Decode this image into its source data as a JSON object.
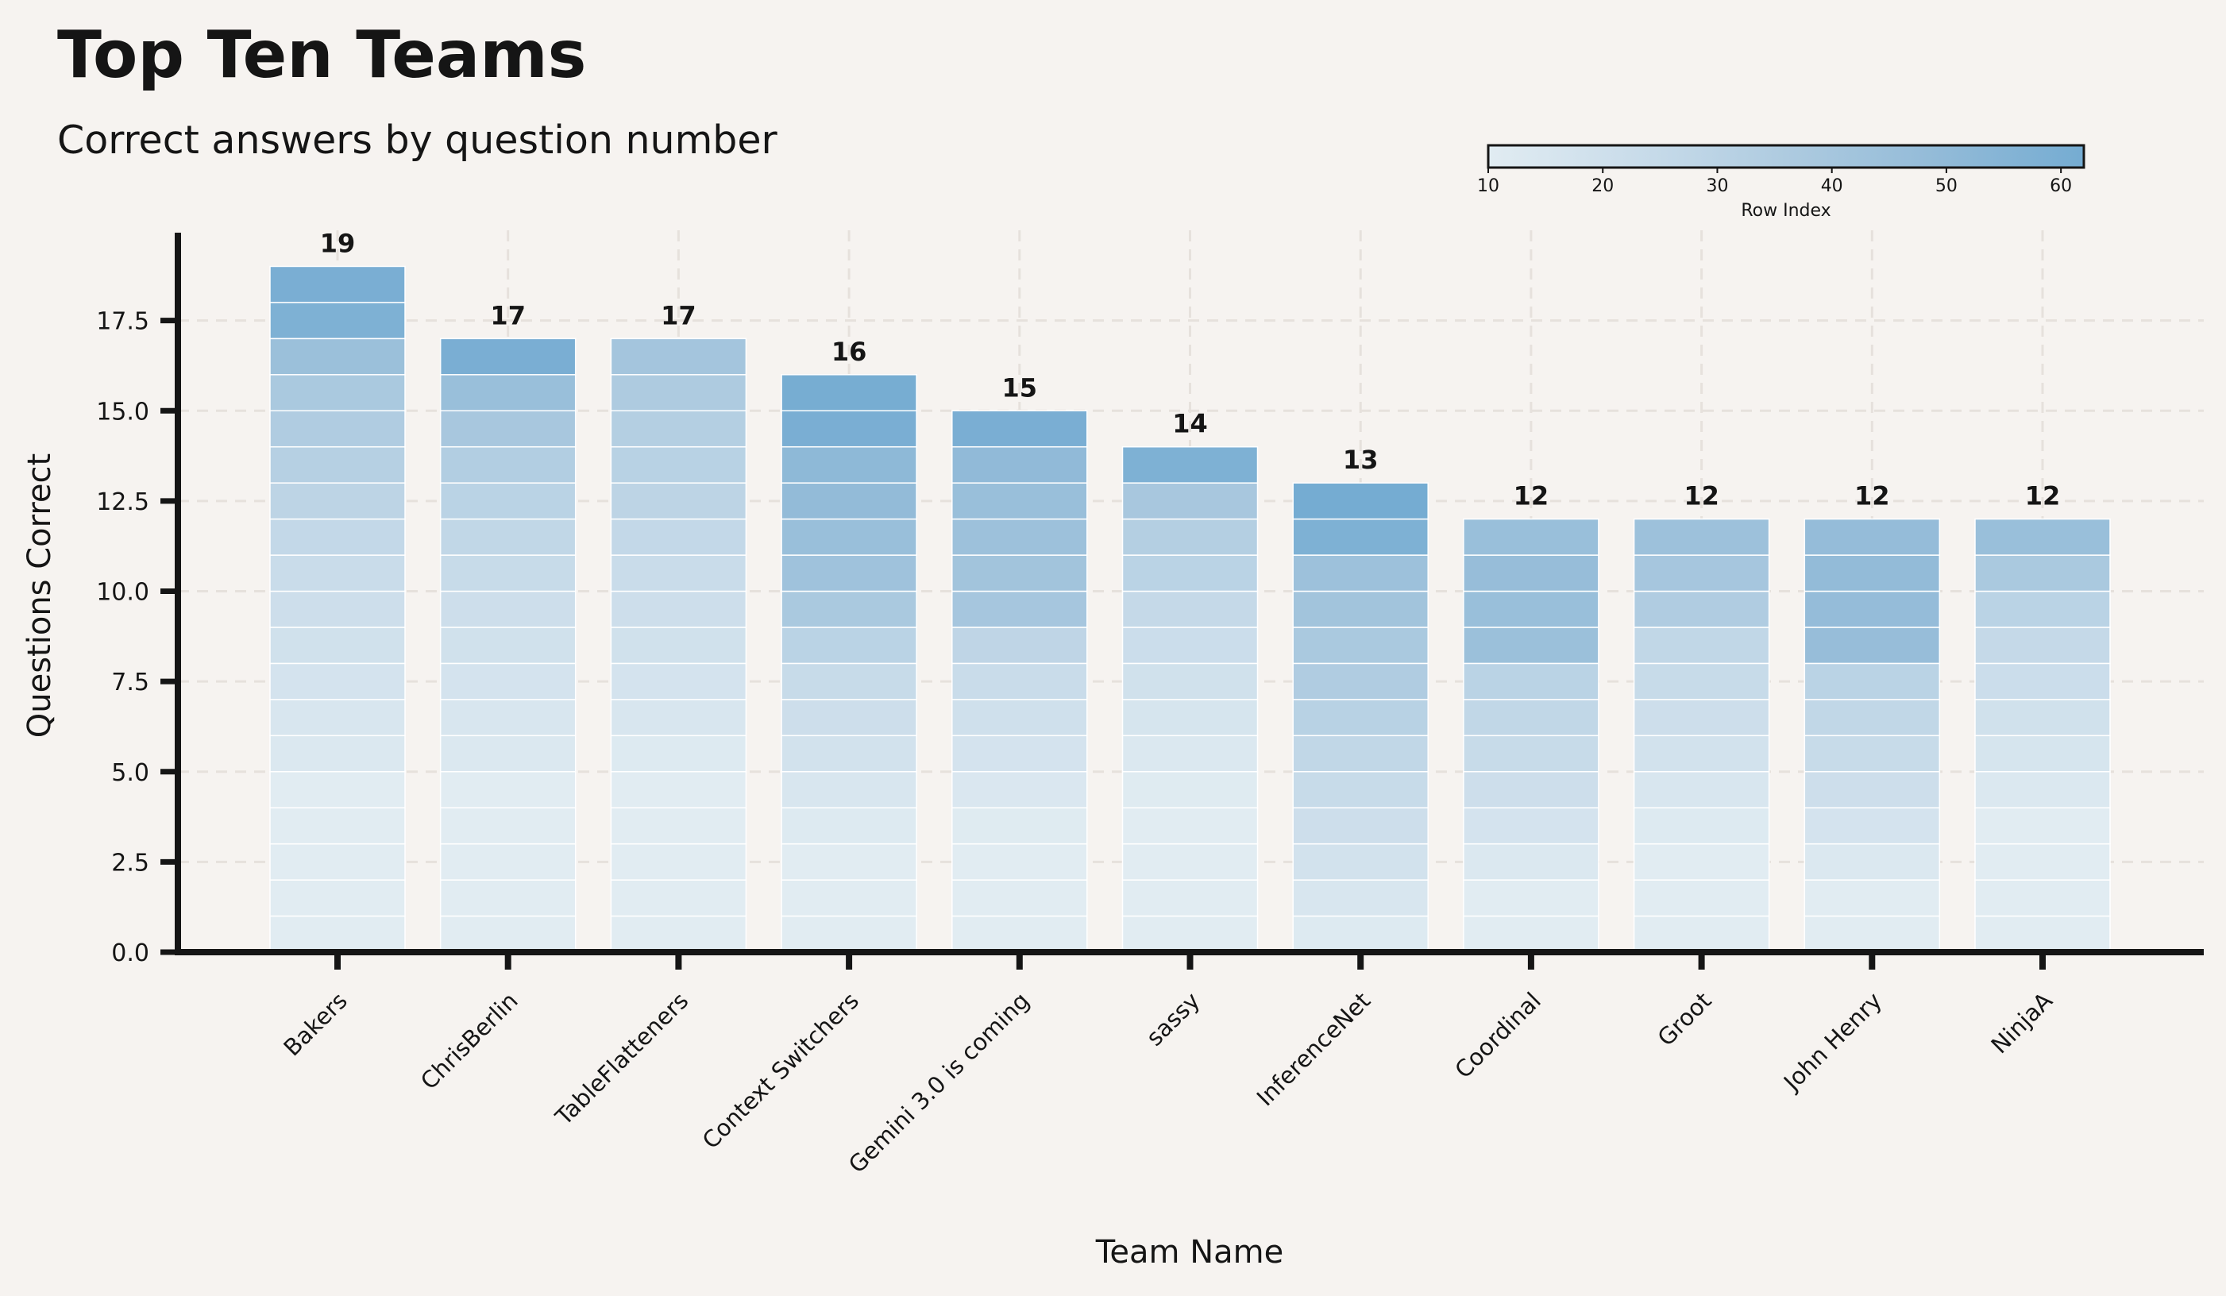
{
  "chart_data": {
    "type": "bar",
    "title": "Top Ten Teams",
    "subtitle": "Correct answers by question number",
    "xlabel": "Team Name",
    "ylabel": "Questions Correct",
    "ylim": [
      0,
      20
    ],
    "yticks": [
      0,
      2.5,
      5,
      7.5,
      10,
      12.5,
      15,
      17.5
    ],
    "ytick_labels": [
      "0.0",
      "2.5",
      "5.0",
      "7.5",
      "10.0",
      "12.5",
      "15.0",
      "17.5"
    ],
    "categories": [
      "Bakers",
      "ChrisBerlin",
      "TableFlatteners",
      "Context Switchers",
      "Gemini 3.0 is coming",
      "sassy",
      "InferenceNet",
      "Coordinal",
      "Groot",
      "John Henry",
      "NinjaA"
    ],
    "values": [
      19,
      17,
      17,
      16,
      15,
      14,
      13,
      12,
      12,
      12,
      12
    ],
    "data_labels": [
      "19",
      "17",
      "17",
      "16",
      "15",
      "14",
      "13",
      "12",
      "12",
      "12",
      "12"
    ],
    "segment_row_index": [
      [
        2,
        3,
        5,
        8,
        10,
        13,
        15,
        17,
        19,
        21,
        23,
        26,
        29,
        32,
        35,
        38,
        45,
        58,
        60
      ],
      [
        2,
        3,
        5,
        8,
        10,
        13,
        15,
        17,
        19,
        21,
        24,
        27,
        30,
        34,
        39,
        46,
        60
      ],
      [
        2,
        3,
        5,
        7,
        10,
        12,
        15,
        17,
        19,
        21,
        23,
        26,
        29,
        31,
        33,
        36,
        41
      ],
      [
        3,
        6,
        9,
        12,
        15,
        18,
        21,
        24,
        30,
        38,
        43,
        46,
        49,
        51,
        60,
        61
      ],
      [
        3,
        5,
        8,
        11,
        14,
        17,
        20,
        23,
        28,
        40,
        42,
        44,
        46,
        50,
        60
      ],
      [
        3,
        5,
        7,
        9,
        11,
        13,
        16,
        19,
        22,
        25,
        30,
        33,
        39,
        58
      ],
      [
        12,
        15,
        18,
        21,
        24,
        27,
        31,
        35,
        38,
        42,
        44,
        58,
        62
      ],
      [
        5,
        9,
        13,
        17,
        21,
        24,
        27,
        30,
        45,
        46,
        47,
        46
      ],
      [
        3,
        6,
        9,
        12,
        15,
        18,
        21,
        24,
        27,
        35,
        40,
        44
      ],
      [
        5,
        9,
        13,
        17,
        21,
        24,
        27,
        30,
        47,
        48,
        49,
        48
      ],
      [
        2,
        4,
        7,
        10,
        13,
        16,
        19,
        22,
        25,
        30,
        38,
        46
      ]
    ],
    "colorbar": {
      "label": "Row Index",
      "min": 10,
      "max": 62,
      "ticks": [
        10,
        20,
        30,
        40,
        50,
        60
      ],
      "tick_labels": [
        "10",
        "20",
        "30",
        "40",
        "50",
        "60"
      ],
      "colormap": [
        "#e1ecf2",
        "#c9dcea",
        "#aecbe0",
        "#93bbd8",
        "#75acd2"
      ]
    },
    "grid": true,
    "legend": "none",
    "colors": {
      "background": "#f6f3f0",
      "axis": "#151515",
      "grid": "#e6e1dc",
      "text": "#151515"
    }
  }
}
